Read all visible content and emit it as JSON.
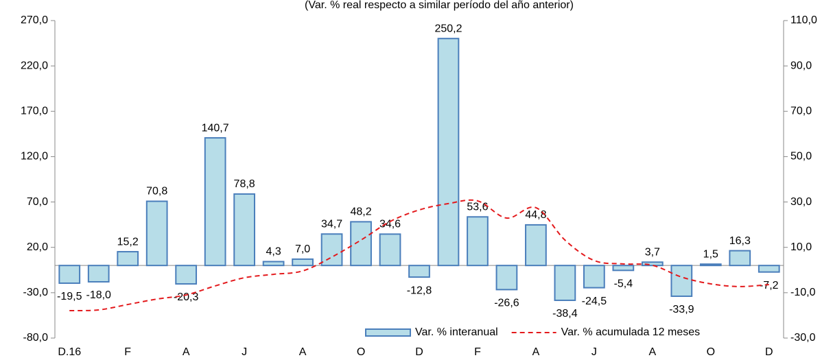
{
  "chart_data": {
    "type": "bar",
    "subtitle": "(Var. % real respecto a similar período del año anterior)",
    "categories": [
      "D.16",
      null,
      "F",
      null,
      "A",
      null,
      "J",
      null,
      "A",
      null,
      "O",
      null,
      "D",
      null,
      "F",
      null,
      "A",
      null,
      "J",
      null,
      "A",
      null,
      "O",
      null,
      "D"
    ],
    "series": [
      {
        "name": "Var. % interanual",
        "type": "bar",
        "color": "#b7dde8",
        "edge_color": "#4a7ebb",
        "values": [
          -19.5,
          -18.0,
          15.2,
          70.8,
          -20.3,
          140.7,
          78.8,
          4.3,
          7.0,
          34.7,
          48.2,
          34.6,
          -12.8,
          250.2,
          53.6,
          -26.6,
          44.8,
          -38.4,
          -24.5,
          -5.4,
          3.7,
          -33.9,
          1.5,
          16.3,
          -7.2
        ],
        "value_labels": [
          "-19,5",
          "-18,0",
          "15,2",
          "70,8",
          "-20,3",
          "140,7",
          "78,8",
          "4,3",
          "7,0",
          "34,7",
          "48,2",
          "34,6",
          "-12,8",
          "250,2",
          "53,6",
          "-26,6",
          "44,8",
          "-38,4",
          "-24,5",
          "-5,4",
          "3,7",
          "-33,9",
          "1,5",
          "16,3",
          "-7,2"
        ]
      },
      {
        "name": "Var. % acumulada 12 meses",
        "type": "line",
        "axis": "y2",
        "color": "#e3191c",
        "dashed": true,
        "values": [
          -17.9,
          -17.6,
          -15.2,
          -12.8,
          -11.0,
          -7.0,
          -3.4,
          -1.9,
          -0.4,
          5.7,
          13.2,
          21.4,
          26.5,
          29.3,
          30.5,
          22.9,
          27.5,
          13.2,
          4.2,
          2.7,
          2.1,
          -3.1,
          -6.1,
          -7.3,
          -6.4
        ]
      }
    ],
    "ylim": [
      -80,
      270
    ],
    "yticks": [
      {
        "value": -80,
        "label": "-80,0"
      },
      {
        "value": -30,
        "label": "-30,0"
      },
      {
        "value": 20,
        "label": "20,0"
      },
      {
        "value": 70,
        "label": "70,0"
      },
      {
        "value": 120,
        "label": "120,0"
      },
      {
        "value": 170,
        "label": "170,0"
      },
      {
        "value": 220,
        "label": "220,0"
      },
      {
        "value": 270,
        "label": "270,0"
      }
    ],
    "y2lim": [
      -30,
      110
    ],
    "y2ticks": [
      {
        "value": -30,
        "label": "-30,0"
      },
      {
        "value": -10,
        "label": "-10,0"
      },
      {
        "value": 10,
        "label": "10,0"
      },
      {
        "value": 30,
        "label": "30,0"
      },
      {
        "value": 50,
        "label": "50,0"
      },
      {
        "value": 70,
        "label": "70,0"
      },
      {
        "value": 90,
        "label": "90,0"
      },
      {
        "value": 110,
        "label": "110,0"
      }
    ],
    "grid": false,
    "legend": "bottom"
  }
}
